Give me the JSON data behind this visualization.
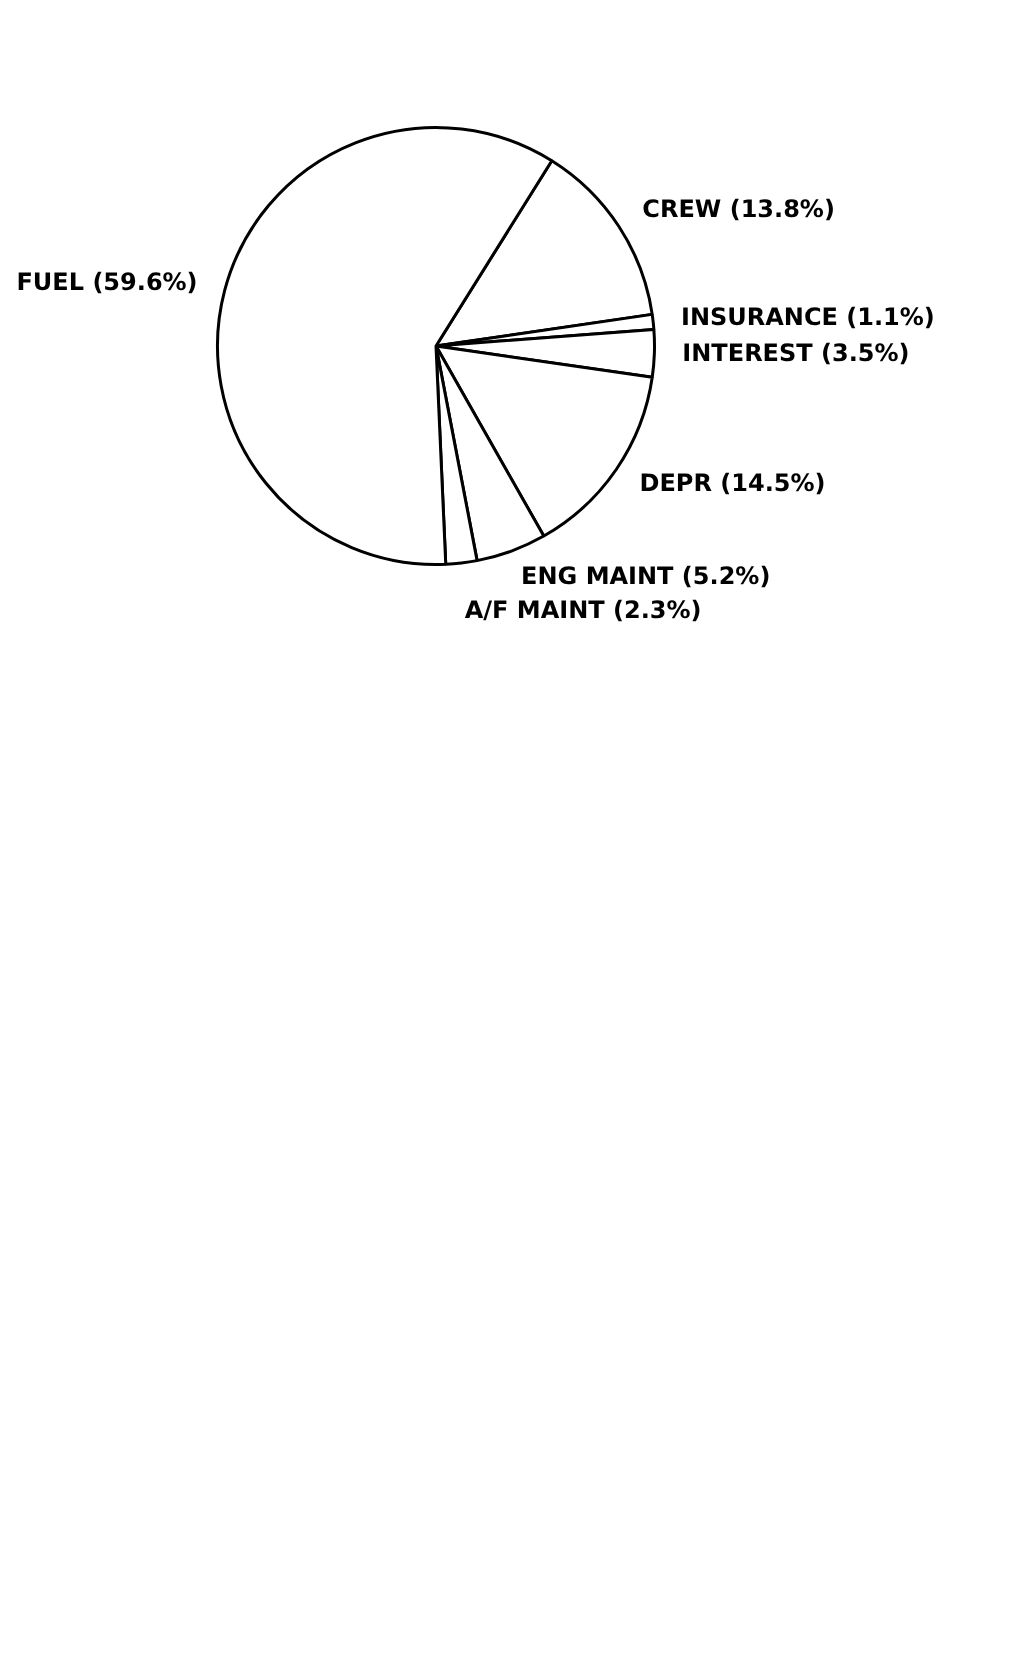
{
  "chart_data": {
    "type": "pie",
    "categories": [
      "CREW",
      "INSURANCE",
      "INTEREST",
      "DEPR",
      "ENG MAINT",
      "A/F MAINT",
      "FUEL"
    ],
    "values": [
      13.8,
      1.1,
      3.5,
      14.5,
      5.2,
      2.3,
      59.6
    ],
    "value_labels": [
      "(13.8%)",
      "(1.1%)",
      "(3.5%)",
      "(14.5%)",
      "(5.2%)",
      "(2.3%)",
      "(59.6%)"
    ],
    "colors": [
      "#ffffff",
      "#ffffff",
      "#ffffff",
      "#ffffff",
      "#ffffff",
      "#ffffff",
      "#ffffff"
    ],
    "legend": false
  }
}
